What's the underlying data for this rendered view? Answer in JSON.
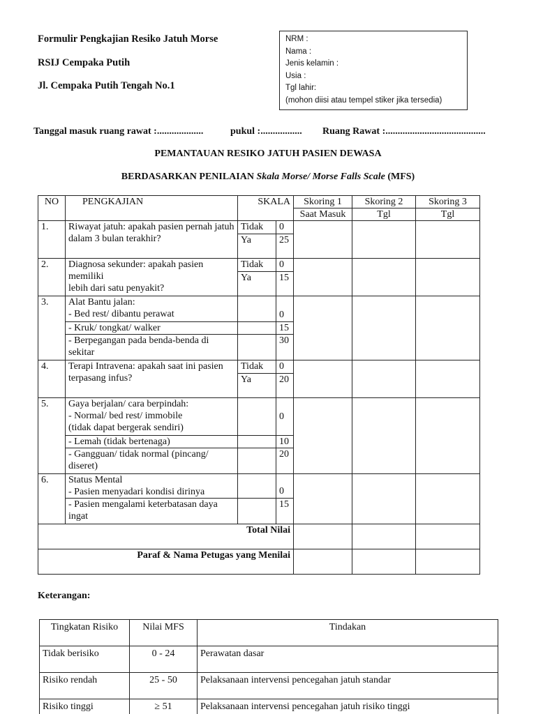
{
  "header": {
    "form_title": "Formulir Pengkajian Resiko Jatuh Morse",
    "hospital": "RSIJ Cempaka Putih",
    "address": "Jl. Cempaka Putih Tengah No.1"
  },
  "id_box": {
    "nrm": "NRM    :",
    "nama": "Nama   :",
    "jenis_kelamin": "Jenis kelamin     :",
    "usia": "Usia      :",
    "tgl_lahir": "Tgl lahir:",
    "note": "(mohon diisi atau tempel stiker jika tersedia)"
  },
  "admission_line": {
    "tanggal": "Tanggal masuk ruang rawat :...................",
    "pukul": "pukul :.................",
    "ruang": "Ruang Rawat :........................................."
  },
  "title": "PEMANTAUAN RESIKO JATUH PASIEN DEWASA",
  "subtitle": {
    "prefix": "BERDASARKAN PENILAIAN ",
    "italic": "Skala Morse/ Morse Falls Scale",
    "suffix": " (MFS)"
  },
  "table": {
    "headers": {
      "no": "NO",
      "pengkajian": "PENGKAJIAN",
      "skala": "SKALA",
      "skoring1": "Skoring 1",
      "skoring2": "Skoring 2",
      "skoring3": "Skoring 3",
      "sub1": "Saat Masuk",
      "sub2": "Tgl",
      "sub3": "Tgl"
    },
    "items": [
      {
        "no": "1.",
        "text": "Riwayat jatuh: apakah pasien pernah jatuh\ndalam 3 bulan terakhir?",
        "opts": [
          {
            "label": "Tidak",
            "score": "0"
          },
          {
            "label": "Ya",
            "score": "25"
          }
        ]
      },
      {
        "no": "2.",
        "text": "Diagnosa sekunder: apakah pasien memiliki\nlebih dari satu penyakit?",
        "opts": [
          {
            "label": "Tidak",
            "score": "0"
          },
          {
            "label": "Ya",
            "score": "15"
          }
        ]
      },
      {
        "no": "3.",
        "subs": [
          {
            "text": "Alat Bantu jalan:\n- Bed rest/ dibantu perawat",
            "score": "0"
          },
          {
            "text": "- Kruk/ tongkat/ walker",
            "score": "15"
          },
          {
            "text": "- Berpegangan pada benda-benda di sekitar",
            "score": "30"
          }
        ]
      },
      {
        "no": "4.",
        "text": "Terapi Intravena: apakah saat ini pasien\nterpasang infus?",
        "opts": [
          {
            "label": "Tidak",
            "score": "0"
          },
          {
            "label": "Ya",
            "score": "20"
          }
        ]
      },
      {
        "no": "5.",
        "subs": [
          {
            "text": "Gaya berjalan/ cara berpindah:\n- Normal/ bed rest/ immobile\n(tidak dapat bergerak sendiri)",
            "score": "0"
          },
          {
            "text": "- Lemah (tidak bertenaga)",
            "score": "10"
          },
          {
            "text": "- Gangguan/ tidak normal (pincang/ diseret)",
            "score": "20"
          }
        ]
      },
      {
        "no": "6.",
        "subs": [
          {
            "text": "Status Mental\n- Pasien menyadari kondisi dirinya",
            "score": "0"
          },
          {
            "text": "- Pasien mengalami keterbatasan daya ingat",
            "score": "15"
          }
        ]
      }
    ],
    "total_label": "Total Nilai",
    "paraf_label": "Paraf & Nama Petugas yang Menilai"
  },
  "keterangan": {
    "label": "Keterangan:",
    "headers": [
      "Tingkatan Risiko",
      "Nilai MFS",
      "Tindakan"
    ],
    "rows": [
      [
        "Tidak berisiko",
        "0 - 24",
        "Perawatan dasar"
      ],
      [
        "Risiko rendah",
        "25 - 50",
        "Pelaksanaan intervensi pencegahan jatuh standar"
      ],
      [
        "Risiko tinggi",
        "≥ 51",
        "Pelaksanaan intervensi pencegahan jatuh risiko tinggi"
      ]
    ]
  }
}
